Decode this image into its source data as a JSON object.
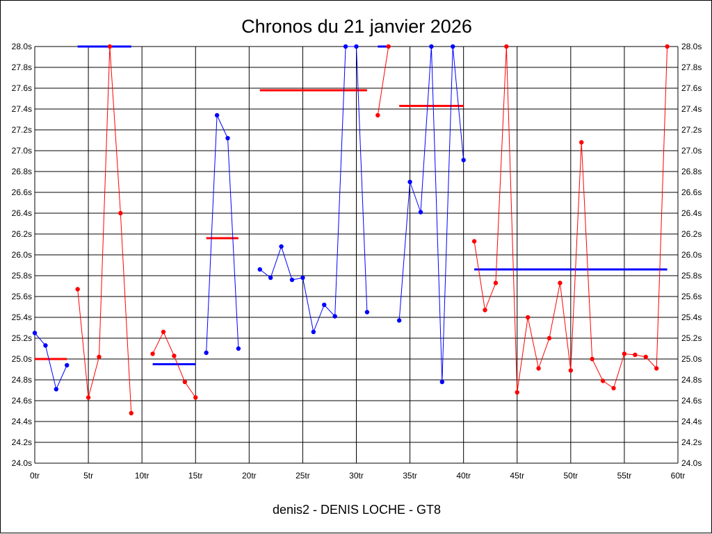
{
  "chart_data": {
    "type": "line",
    "title": "Chronos du 21 janvier 2026",
    "subtitle": "denis2 - DENIS LOCHE - GT8",
    "xlabel": "",
    "ylabel": "",
    "xlim": [
      0,
      60
    ],
    "ylim": [
      24.0,
      28.0
    ],
    "x_ticks": [
      "0tr",
      "5tr",
      "10tr",
      "15tr",
      "20tr",
      "25tr",
      "30tr",
      "35tr",
      "40tr",
      "45tr",
      "50tr",
      "55tr",
      "60tr"
    ],
    "y_ticks": [
      "24.0s",
      "24.2s",
      "24.4s",
      "24.6s",
      "24.8s",
      "25.0s",
      "25.2s",
      "25.4s",
      "25.6s",
      "25.8s",
      "26.0s",
      "26.2s",
      "26.4s",
      "26.6s",
      "26.8s",
      "27.0s",
      "27.2s",
      "27.4s",
      "27.6s",
      "27.8s",
      "28.0s"
    ],
    "grid": true,
    "colors": {
      "blue": "#0000ff",
      "red": "#ff0000",
      "grid": "#000000"
    },
    "segments": [
      {
        "color": "blue",
        "points": [
          [
            0,
            25.25
          ],
          [
            1,
            25.13
          ],
          [
            2,
            24.71
          ],
          [
            3,
            24.94
          ]
        ]
      },
      {
        "color": "red",
        "points": [
          [
            4,
            25.67
          ],
          [
            5,
            24.63
          ],
          [
            6,
            25.02
          ],
          [
            7,
            28.0
          ],
          [
            8,
            26.4
          ],
          [
            9,
            24.48
          ]
        ]
      },
      {
        "color": "red",
        "points": [
          [
            11,
            25.05
          ],
          [
            12,
            25.26
          ],
          [
            13,
            25.03
          ],
          [
            14,
            24.78
          ],
          [
            15,
            24.63
          ]
        ]
      },
      {
        "color": "blue",
        "points": [
          [
            16,
            25.06
          ],
          [
            17,
            27.34
          ],
          [
            18,
            27.12
          ],
          [
            19,
            25.1
          ]
        ]
      },
      {
        "color": "blue",
        "points": [
          [
            21,
            25.86
          ],
          [
            22,
            25.78
          ],
          [
            23,
            26.08
          ],
          [
            24,
            25.76
          ],
          [
            25,
            25.78
          ],
          [
            26,
            25.26
          ],
          [
            27,
            25.52
          ],
          [
            28,
            25.41
          ],
          [
            29,
            28.0
          ],
          [
            30,
            28.0
          ],
          [
            31,
            25.45
          ]
        ]
      },
      {
        "color": "red",
        "points": [
          [
            32,
            27.34
          ],
          [
            33,
            28.0
          ]
        ]
      },
      {
        "color": "blue",
        "points": [
          [
            34,
            25.37
          ],
          [
            35,
            26.7
          ],
          [
            36,
            26.41
          ],
          [
            37,
            28.0
          ],
          [
            38,
            24.78
          ],
          [
            39,
            28.0
          ],
          [
            40,
            26.91
          ]
        ]
      },
      {
        "color": "red",
        "points": [
          [
            41,
            26.13
          ],
          [
            42,
            25.47
          ],
          [
            43,
            25.73
          ],
          [
            44,
            28.0
          ],
          [
            45,
            24.68
          ],
          [
            46,
            25.4
          ],
          [
            47,
            24.91
          ],
          [
            48,
            25.2
          ],
          [
            49,
            25.73
          ],
          [
            50,
            24.89
          ],
          [
            51,
            27.08
          ],
          [
            52,
            25.0
          ],
          [
            53,
            24.79
          ],
          [
            54,
            24.72
          ],
          [
            55,
            25.05
          ],
          [
            56,
            25.04
          ],
          [
            57,
            25.02
          ],
          [
            58,
            24.91
          ],
          [
            59,
            28.0
          ]
        ]
      }
    ],
    "averages": [
      {
        "color": "red",
        "x": [
          0,
          3
        ],
        "value": 25.0
      },
      {
        "color": "blue",
        "x": [
          4,
          9
        ],
        "value": 28.0
      },
      {
        "color": "blue",
        "x": [
          11,
          15
        ],
        "value": 24.95
      },
      {
        "color": "red",
        "x": [
          16,
          19
        ],
        "value": 26.16
      },
      {
        "color": "red",
        "x": [
          21,
          31
        ],
        "value": 27.58
      },
      {
        "color": "blue",
        "x": [
          32,
          33
        ],
        "value": 28.0
      },
      {
        "color": "red",
        "x": [
          34,
          40
        ],
        "value": 27.43
      },
      {
        "color": "blue",
        "x": [
          41,
          59
        ],
        "value": 25.86
      }
    ]
  }
}
